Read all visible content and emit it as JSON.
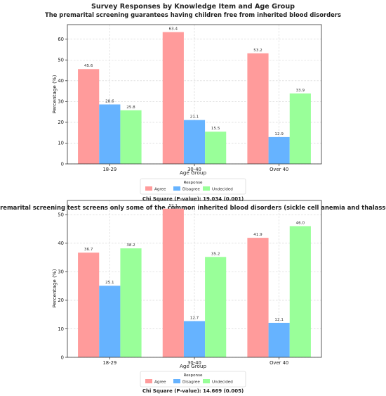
{
  "figure": {
    "title": "Survey Responses by Knowledge Item and Age Group"
  },
  "colors": {
    "Agree": "#ff9b9b",
    "Disagree": "#66b3ff",
    "Undecided": "#99ff99"
  },
  "chart_data": [
    {
      "type": "bar",
      "title": "The premarital screening guarantees having children free from inherited blood disorders",
      "xlabel": "Age Group",
      "ylabel": "Percentage (%)",
      "categories": [
        "18-29",
        "30-40",
        "Over 40"
      ],
      "series": [
        {
          "name": "Agree",
          "values": [
            45.6,
            63.4,
            53.2
          ],
          "labels": [
            "45.6",
            "63.4",
            "53.2"
          ]
        },
        {
          "name": "Disagree",
          "values": [
            28.6,
            21.1,
            12.9
          ],
          "labels": [
            "28.6",
            "21.1",
            "12.9"
          ]
        },
        {
          "name": "Undecided",
          "values": [
            25.8,
            15.5,
            33.9
          ],
          "labels": [
            "25.8",
            "15.5",
            "33.9"
          ]
        }
      ],
      "ylim": [
        0,
        67
      ],
      "yticks": [
        0,
        10,
        20,
        30,
        40,
        50,
        60
      ],
      "grid": true,
      "legend": {
        "title": "Response",
        "placement": "bottom-center"
      },
      "annotation": "Chi Square (P-value): 19.034 (0.001)"
    },
    {
      "type": "bar",
      "title": "The premarital screening test screens only some of the common inherited blood disorders (sickle cell anemia and thalassemia)",
      "xlabel": "Age Group",
      "ylabel": "Percentage (%)",
      "categories": [
        "18-29",
        "30-40",
        "Over 40"
      ],
      "series": [
        {
          "name": "Agree",
          "values": [
            36.7,
            52.1,
            41.9
          ],
          "labels": [
            "36.7",
            "52.1",
            "41.9"
          ]
        },
        {
          "name": "Disagree",
          "values": [
            25.1,
            12.7,
            12.1
          ],
          "labels": [
            "25.1",
            "12.7",
            "12.1"
          ]
        },
        {
          "name": "Undecided",
          "values": [
            38.2,
            35.2,
            46.0
          ],
          "labels": [
            "38.2",
            "35.2",
            "46.0"
          ]
        }
      ],
      "ylim": [
        0,
        55
      ],
      "yticks": [
        0,
        10,
        20,
        30,
        40,
        50
      ],
      "grid": true,
      "legend": {
        "title": "Response",
        "placement": "bottom-center"
      },
      "annotation": "Chi Square (P-value): 14.669 (0.005)"
    }
  ]
}
